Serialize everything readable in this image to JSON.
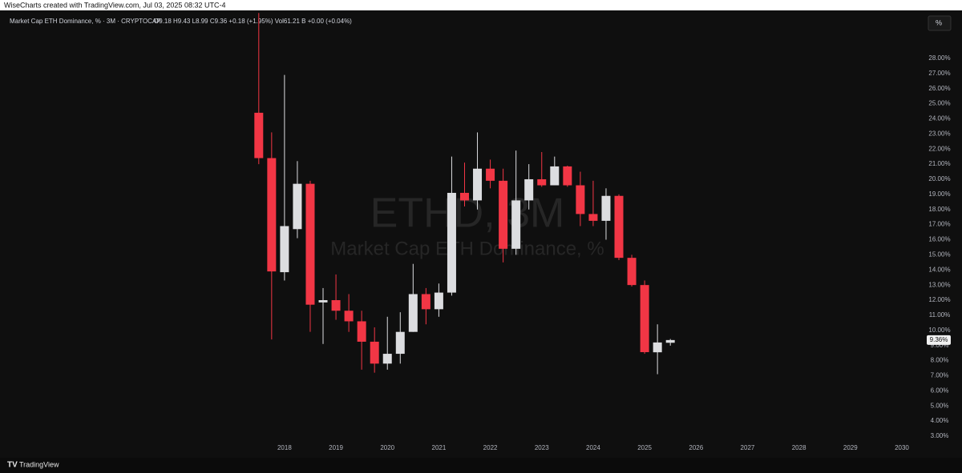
{
  "chart_data": {
    "type": "candlestick",
    "attribution": "WiseCharts created with TradingView.com, Jul 03, 2025 08:32 UTC-4",
    "legend_text": "Market Cap ETH Dominance, % · 3M · CRYPTOCAP",
    "legend_values": "O9.18  H9.43  L8.99  C9.36  +0.18 (+1.95%)   Vol61.21 B  +0.00 (+0.04%)",
    "watermark_symbol": "ETHD, 3M",
    "watermark_name": "Market Cap ETH Dominance, %",
    "scale_button": "%",
    "brand": "TradingView",
    "up_color": "#dcdde0",
    "down_color": "#f23645",
    "x": [
      2017.5,
      2017.75,
      2018.0,
      2018.25,
      2018.5,
      2018.75,
      2019.0,
      2019.25,
      2019.5,
      2019.75,
      2020.0,
      2020.25,
      2020.5,
      2020.75,
      2021.0,
      2021.25,
      2021.5,
      2021.75,
      2022.0,
      2022.25,
      2022.5,
      2022.75,
      2023.0,
      2023.25,
      2023.5,
      2023.75,
      2024.0,
      2024.25,
      2024.5,
      2024.75,
      2025.0,
      2025.25,
      2025.5
    ],
    "open": [
      24.4,
      21.4,
      13.85,
      16.7,
      19.7,
      11.85,
      12.0,
      11.3,
      10.6,
      9.25,
      7.8,
      8.45,
      9.9,
      12.4,
      11.4,
      12.5,
      19.1,
      18.6,
      20.7,
      19.9,
      15.4,
      18.6,
      20.0,
      19.6,
      20.85,
      19.6,
      17.7,
      17.25,
      18.9,
      14.8,
      13.0,
      8.55,
      9.18
    ],
    "high": [
      31.0,
      23.1,
      26.9,
      21.2,
      19.9,
      12.8,
      13.7,
      12.4,
      11.3,
      10.2,
      10.9,
      11.2,
      14.4,
      12.8,
      13.1,
      21.5,
      21.1,
      23.1,
      21.3,
      20.7,
      21.9,
      21.0,
      21.8,
      21.5,
      20.9,
      20.5,
      19.9,
      19.4,
      19.0,
      15.0,
      13.3,
      10.4,
      9.43
    ],
    "low": [
      21.0,
      9.4,
      13.3,
      16.1,
      9.9,
      9.1,
      10.7,
      9.9,
      7.4,
      7.2,
      7.4,
      7.8,
      9.9,
      10.4,
      10.9,
      12.3,
      18.2,
      18.0,
      19.4,
      14.5,
      15.0,
      18.0,
      19.5,
      19.6,
      19.5,
      16.9,
      16.9,
      16.0,
      14.65,
      12.9,
      8.45,
      7.1,
      8.99
    ],
    "close": [
      21.4,
      13.9,
      16.9,
      19.7,
      11.7,
      12.0,
      11.3,
      10.6,
      9.25,
      7.8,
      8.45,
      9.9,
      12.4,
      11.4,
      12.5,
      19.1,
      18.6,
      20.7,
      19.9,
      15.4,
      18.6,
      20.0,
      19.6,
      20.85,
      19.6,
      17.7,
      17.25,
      18.9,
      14.8,
      13.0,
      8.56,
      9.2,
      9.36
    ],
    "last_price_label": {
      "value": 9.36,
      "label": "9.36%"
    },
    "xlim": [
      2012.47,
      2030.39
    ],
    "xticks": [
      2018,
      2019,
      2020,
      2021,
      2022,
      2023,
      2024,
      2025,
      2026,
      2027,
      2028,
      2029,
      2030
    ],
    "ylim": [
      1.78,
      31.12
    ],
    "yticks": [
      {
        "value": 3,
        "label": "3.00%"
      },
      {
        "value": 4,
        "label": "4.00%"
      },
      {
        "value": 5,
        "label": "5.00%"
      },
      {
        "value": 6,
        "label": "6.00%"
      },
      {
        "value": 7,
        "label": "7.00%"
      },
      {
        "value": 8,
        "label": "8.00%"
      },
      {
        "value": 9,
        "label": "9.00%"
      },
      {
        "value": 10,
        "label": "10.00%"
      },
      {
        "value": 11,
        "label": "11.00%"
      },
      {
        "value": 12,
        "label": "12.00%"
      },
      {
        "value": 13,
        "label": "13.00%"
      },
      {
        "value": 14,
        "label": "14.00%"
      },
      {
        "value": 15,
        "label": "15.00%"
      },
      {
        "value": 16,
        "label": "16.00%"
      },
      {
        "value": 17,
        "label": "17.00%"
      },
      {
        "value": 18,
        "label": "18.00%"
      },
      {
        "value": 19,
        "label": "19.00%"
      },
      {
        "value": 20,
        "label": "20.00%"
      },
      {
        "value": 21,
        "label": "21.00%"
      },
      {
        "value": 22,
        "label": "22.00%"
      },
      {
        "value": 23,
        "label": "23.00%"
      },
      {
        "value": 24,
        "label": "24.00%"
      },
      {
        "value": 25,
        "label": "25.00%"
      },
      {
        "value": 26,
        "label": "26.00%"
      },
      {
        "value": 27,
        "label": "27.00%"
      },
      {
        "value": 28,
        "label": "28.00%"
      }
    ],
    "grid": false
  }
}
